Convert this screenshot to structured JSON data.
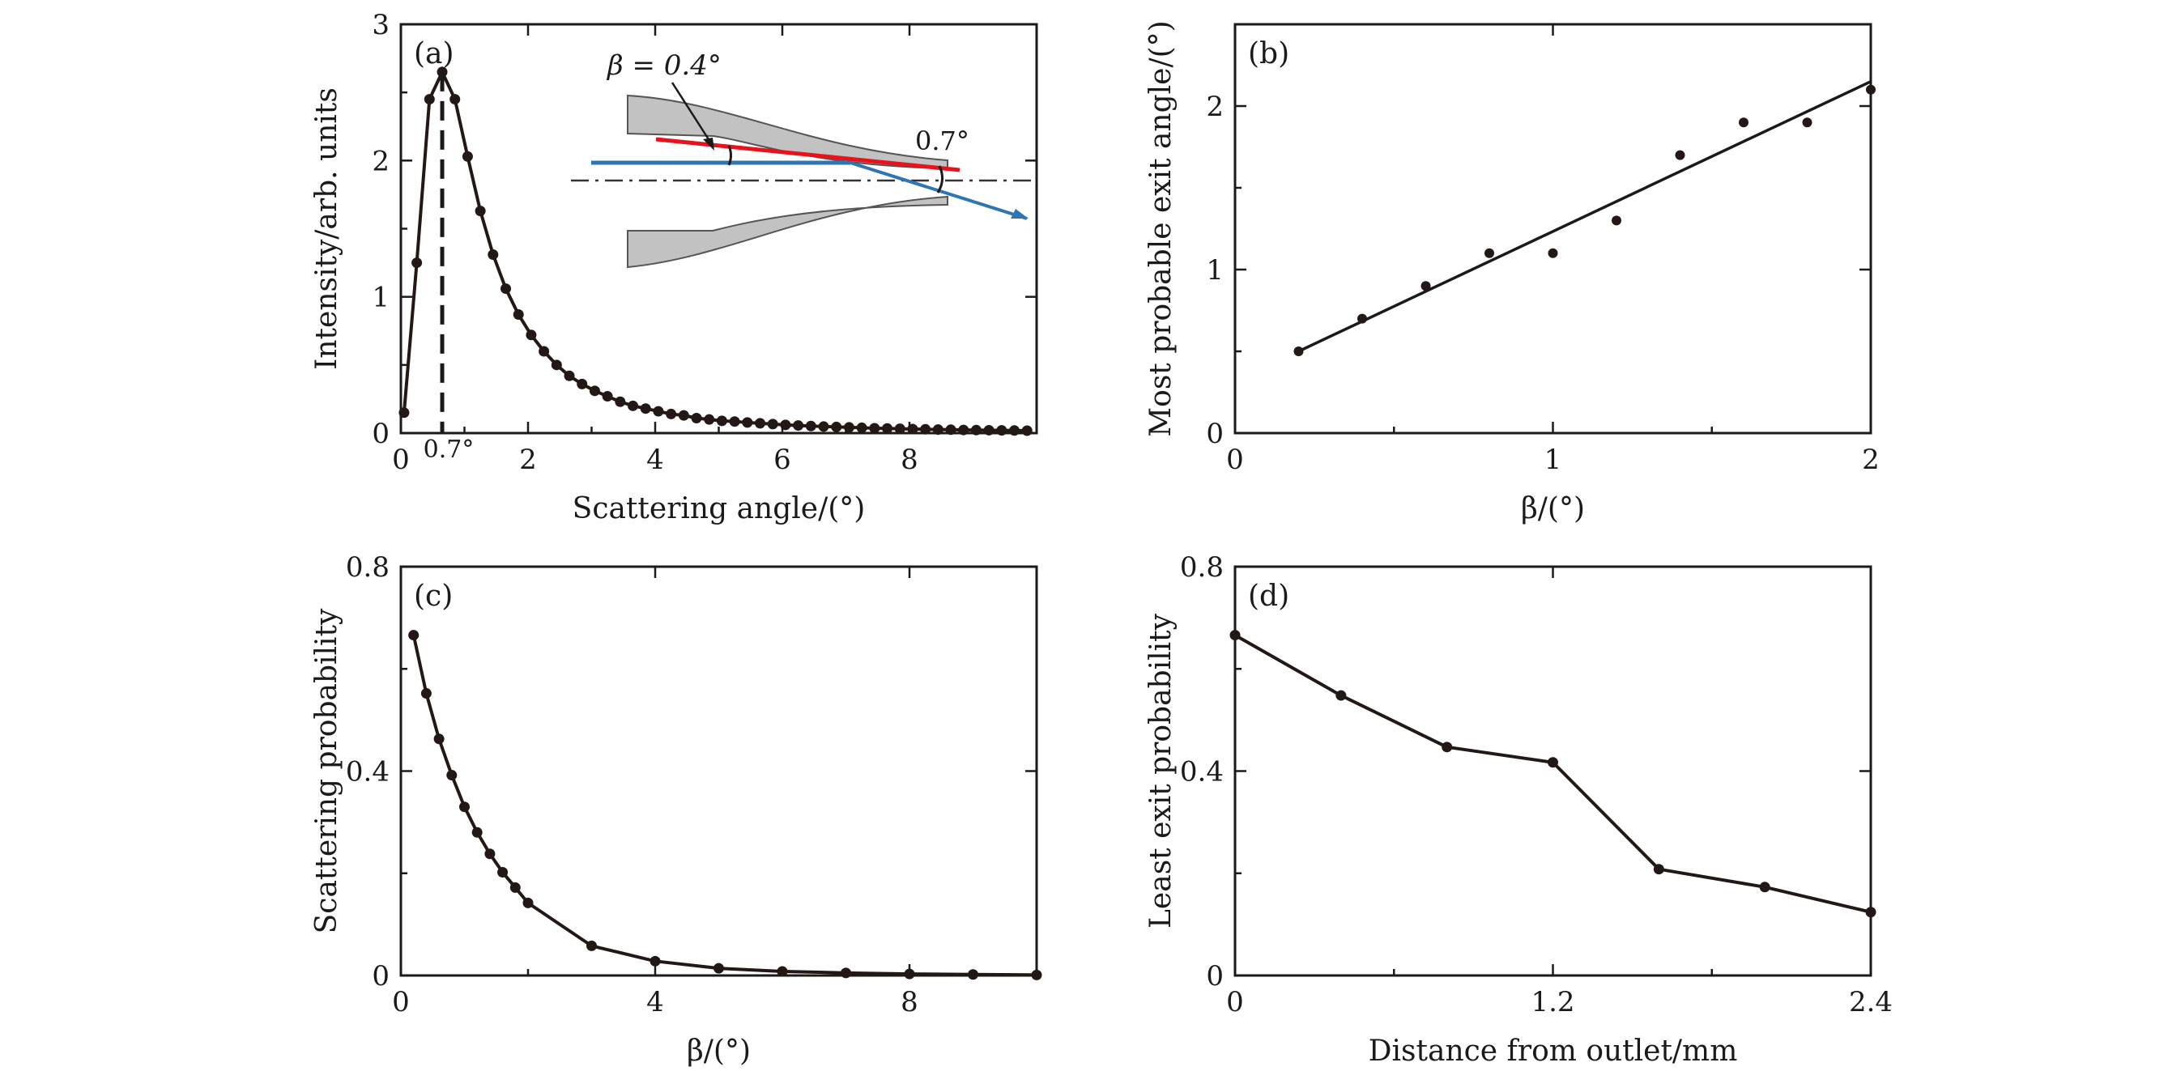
{
  "chart_data": [
    {
      "id": "a",
      "type": "line",
      "panel_label": "(a)",
      "xlabel": "Scattering angle/(°)",
      "ylabel": "Intensity/arb. units",
      "xlim": [
        0,
        10
      ],
      "ylim": [
        0,
        3
      ],
      "xticks": [
        0,
        2,
        4,
        6,
        8
      ],
      "xtick_labels": [
        "0",
        "2",
        "4",
        "6",
        "8"
      ],
      "yticks": [
        0,
        1,
        2,
        3
      ],
      "ytick_labels": [
        "0",
        "1",
        "2",
        "3"
      ],
      "x": [
        0.05,
        0.25,
        0.45,
        0.65,
        0.85,
        1.05,
        1.25,
        1.45,
        1.65,
        1.85,
        2.05,
        2.25,
        2.45,
        2.65,
        2.85,
        3.05,
        3.25,
        3.45,
        3.65,
        3.85,
        4.05,
        4.25,
        4.45,
        4.65,
        4.85,
        5.05,
        5.25,
        5.45,
        5.65,
        5.85,
        6.05,
        6.25,
        6.45,
        6.65,
        6.85,
        7.05,
        7.25,
        7.45,
        7.65,
        7.85,
        8.05,
        8.25,
        8.45,
        8.65,
        8.85,
        9.05,
        9.25,
        9.45,
        9.65,
        9.85
      ],
      "values": [
        0.15,
        1.25,
        2.45,
        2.65,
        2.45,
        2.03,
        1.63,
        1.31,
        1.06,
        0.87,
        0.72,
        0.6,
        0.5,
        0.42,
        0.36,
        0.31,
        0.27,
        0.23,
        0.2,
        0.18,
        0.16,
        0.14,
        0.13,
        0.11,
        0.1,
        0.09,
        0.085,
        0.078,
        0.072,
        0.066,
        0.06,
        0.056,
        0.052,
        0.048,
        0.045,
        0.042,
        0.039,
        0.036,
        0.034,
        0.032,
        0.03,
        0.028,
        0.026,
        0.025,
        0.023,
        0.022,
        0.021,
        0.02,
        0.019,
        0.018
      ],
      "peak_marker": {
        "x": 0.65,
        "label": "0.7°"
      },
      "inset": {
        "beta_label": "β = 0.4°",
        "angle_label": "0.7°",
        "colors": {
          "wall": "#c2c2c2",
          "incident": "#2e75b6",
          "tilt": "#e8121b"
        }
      }
    },
    {
      "id": "b",
      "type": "scatter",
      "panel_label": "(b)",
      "xlabel": "β/(°)",
      "ylabel": "Most probable exit angle/(°)",
      "xlim": [
        0,
        2
      ],
      "ylim": [
        0,
        2.5
      ],
      "xticks": [
        0,
        1,
        2
      ],
      "xtick_labels": [
        "0",
        "1",
        "2"
      ],
      "yticks": [
        0,
        1,
        2
      ],
      "ytick_labels": [
        "0",
        "1",
        "2"
      ],
      "x": [
        0.2,
        0.4,
        0.6,
        0.8,
        1.0,
        1.2,
        1.4,
        1.6,
        1.8,
        2.0
      ],
      "values": [
        0.5,
        0.7,
        0.9,
        1.1,
        1.1,
        1.3,
        1.7,
        1.9,
        1.9,
        2.1
      ],
      "fit": {
        "x": [
          0.2,
          2.0
        ],
        "y": [
          0.5,
          2.15
        ]
      }
    },
    {
      "id": "c",
      "type": "line",
      "panel_label": "(c)",
      "xlabel": "β/(°)",
      "ylabel": "Scattering probability",
      "xlim": [
        0,
        10
      ],
      "ylim": [
        0,
        0.8
      ],
      "xticks": [
        0,
        4,
        8
      ],
      "xtick_labels": [
        "0",
        "4",
        "8"
      ],
      "yticks": [
        0,
        0.4,
        0.8
      ],
      "ytick_labels": [
        "0",
        "0.4",
        "0.8"
      ],
      "x": [
        0.2,
        0.4,
        0.6,
        0.8,
        1.0,
        1.2,
        1.4,
        1.6,
        1.8,
        2.0,
        3.0,
        4.0,
        5.0,
        6.0,
        7.0,
        8.0,
        9.0,
        10.0
      ],
      "values": [
        0.666,
        0.552,
        0.463,
        0.392,
        0.33,
        0.28,
        0.238,
        0.202,
        0.172,
        0.142,
        0.058,
        0.028,
        0.014,
        0.008,
        0.005,
        0.003,
        0.002,
        0.001
      ]
    },
    {
      "id": "d",
      "type": "line",
      "panel_label": "(d)",
      "xlabel": "Distance from outlet/mm",
      "ylabel": "Least exit probability",
      "xlim": [
        0,
        2.4
      ],
      "ylim": [
        0,
        0.8
      ],
      "xticks": [
        0,
        1.2,
        2.4
      ],
      "xtick_labels": [
        "0",
        "1.2",
        "2.4"
      ],
      "yticks": [
        0,
        0.4,
        0.8
      ],
      "ytick_labels": [
        "0",
        "0.4",
        "0.8"
      ],
      "x": [
        0,
        0.4,
        0.8,
        1.2,
        1.6,
        2.0,
        2.4
      ],
      "values": [
        0.666,
        0.548,
        0.447,
        0.417,
        0.208,
        0.173,
        0.124
      ]
    }
  ]
}
